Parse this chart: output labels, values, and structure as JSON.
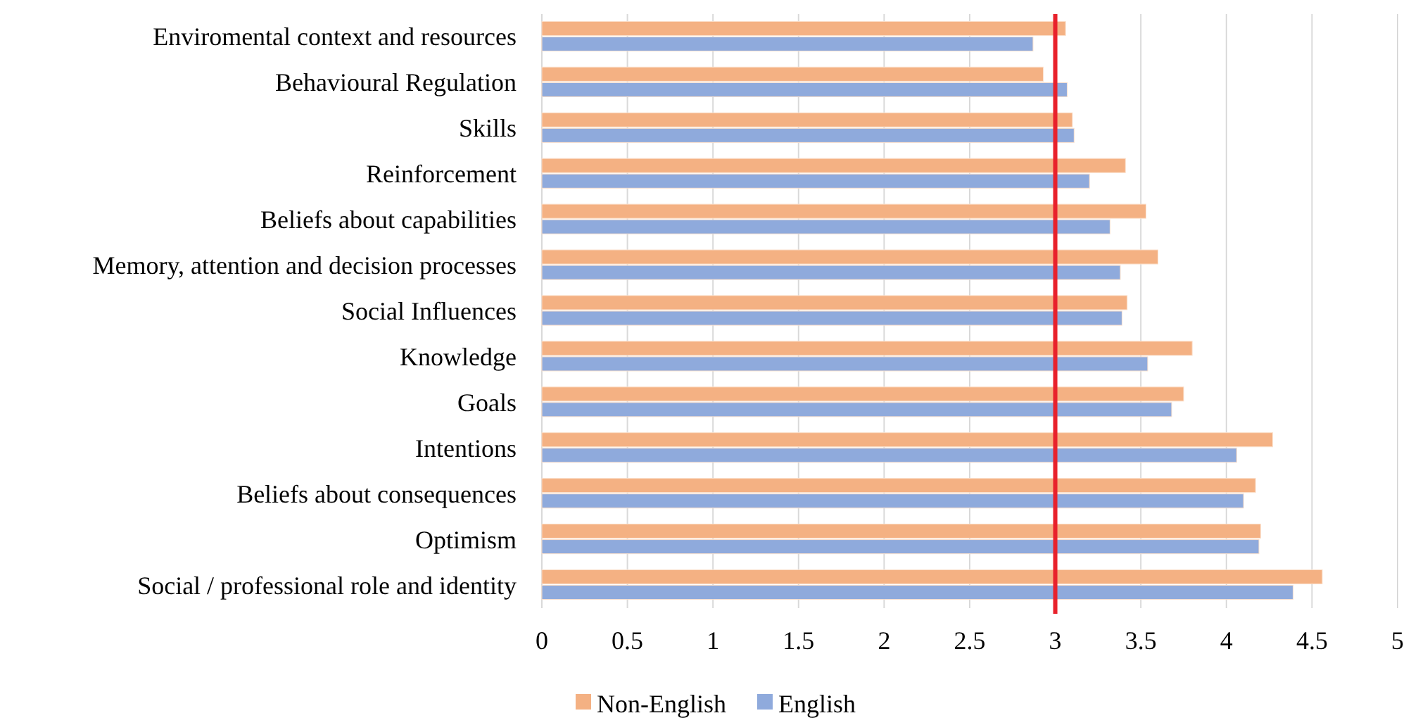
{
  "chart_data": {
    "type": "bar",
    "orientation": "horizontal",
    "categories": [
      "Enviromental context and resources",
      "Behavioural Regulation",
      "Skills",
      "Reinforcement",
      "Beliefs about capabilities",
      "Memory, attention and decision processes",
      "Social Influences",
      "Knowledge",
      "Goals",
      "Intentions",
      "Beliefs about consequences",
      "Optimism",
      "Social / professional role and identity"
    ],
    "series": [
      {
        "name": "Non-English",
        "color": "#f4b183",
        "values": [
          3.06,
          2.93,
          3.1,
          3.41,
          3.53,
          3.6,
          3.42,
          3.8,
          3.75,
          4.27,
          4.17,
          4.2,
          4.56
        ]
      },
      {
        "name": "English",
        "color": "#8faadc",
        "values": [
          2.87,
          3.07,
          3.11,
          3.2,
          3.32,
          3.38,
          3.39,
          3.54,
          3.68,
          4.06,
          4.1,
          4.19,
          4.39
        ]
      }
    ],
    "xlim": [
      0,
      5
    ],
    "xticks": [
      0,
      0.5,
      1,
      1.5,
      2,
      2.5,
      3,
      3.5,
      4,
      4.5,
      5
    ],
    "grid": "x",
    "legend": "bottom",
    "ref_lines": [
      {
        "axis": "x",
        "value": 3,
        "color": "#e8212b"
      }
    ]
  }
}
